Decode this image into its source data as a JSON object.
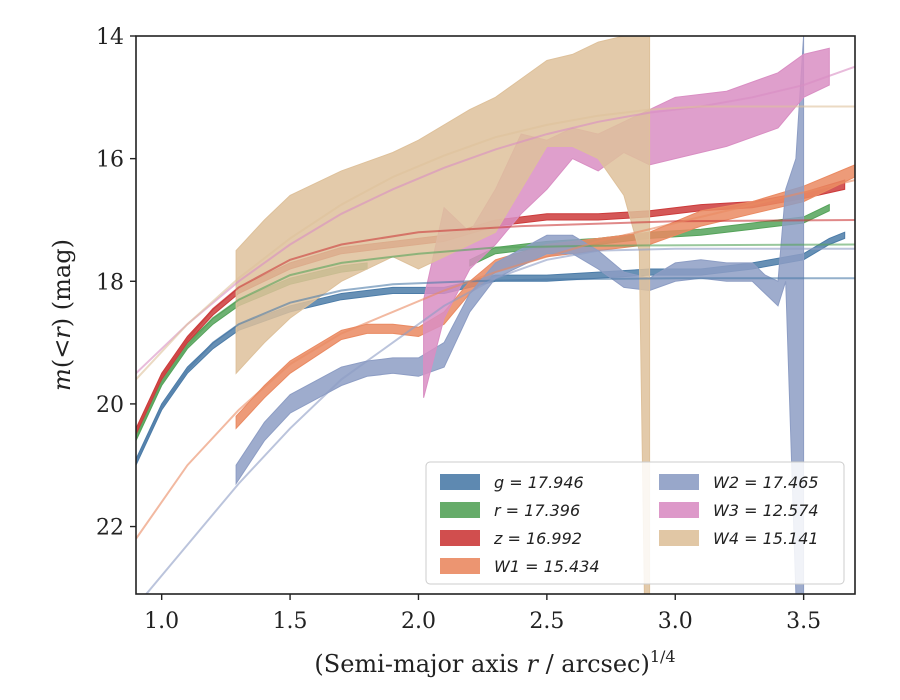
{
  "chart_data": {
    "type": "line",
    "xlabel_main": "(Semi-major axis ",
    "xlabel_var": "r",
    "xlabel_unit": " / arcsec)",
    "xlabel_sup": "1/4",
    "ylabel_main": "m",
    "ylabel_paren": "(<",
    "ylabel_var": "r",
    "ylabel_close": ") (mag)",
    "xlim": [
      0.9,
      3.7
    ],
    "ylim": [
      23.1,
      14.0
    ],
    "xticks": [
      1.0,
      1.5,
      2.0,
      2.5,
      3.0,
      3.5
    ],
    "xtick_labels": [
      "1.0",
      "1.5",
      "2.0",
      "2.5",
      "3.0",
      "3.5"
    ],
    "yticks": [
      14,
      16,
      18,
      20,
      22
    ],
    "ytick_labels": [
      "14",
      "16",
      "18",
      "20",
      "22"
    ],
    "legend_position": "bottom-right",
    "series": [
      {
        "name": "g",
        "legend": "g = 17.946",
        "color": "#4c7ca8",
        "band": [
          [
            0.9,
            20.9,
            21.0
          ],
          [
            1.0,
            20.0,
            20.1
          ],
          [
            1.1,
            19.4,
            19.5
          ],
          [
            1.2,
            19.0,
            19.1
          ],
          [
            1.3,
            18.7,
            18.8
          ],
          [
            1.5,
            18.4,
            18.5
          ],
          [
            1.7,
            18.2,
            18.3
          ],
          [
            1.9,
            18.1,
            18.2
          ],
          [
            2.1,
            18.1,
            18.2
          ],
          [
            2.2,
            18.0,
            18.1
          ],
          [
            2.3,
            17.9,
            18.0
          ],
          [
            2.5,
            17.9,
            18.0
          ],
          [
            2.7,
            17.85,
            17.95
          ],
          [
            2.9,
            17.8,
            17.9
          ],
          [
            3.1,
            17.8,
            17.9
          ],
          [
            3.3,
            17.7,
            17.8
          ],
          [
            3.5,
            17.55,
            17.65
          ],
          [
            3.6,
            17.3,
            17.4
          ],
          [
            3.66,
            17.2,
            17.3
          ]
        ],
        "model": [
          [
            0.9,
            20.95
          ],
          [
            1.0,
            20.05
          ],
          [
            1.1,
            19.45
          ],
          [
            1.2,
            19.0
          ],
          [
            1.3,
            18.7
          ],
          [
            1.5,
            18.35
          ],
          [
            1.7,
            18.15
          ],
          [
            1.9,
            18.05
          ],
          [
            2.2,
            18.0
          ],
          [
            2.5,
            17.97
          ],
          [
            3.0,
            17.95
          ],
          [
            3.7,
            17.95
          ]
        ]
      },
      {
        "name": "r",
        "legend": "r = 17.396",
        "color": "#55a35a",
        "band": [
          [
            0.9,
            20.5,
            20.6
          ],
          [
            1.0,
            19.6,
            19.7
          ],
          [
            1.1,
            19.0,
            19.1
          ],
          [
            1.2,
            18.6,
            18.7
          ],
          [
            1.3,
            18.3,
            18.4
          ],
          [
            1.5,
            17.95,
            18.05
          ],
          [
            1.7,
            17.75,
            17.85
          ],
          [
            1.8,
            17.7,
            17.8
          ]
        ],
        "model": [
          [
            0.9,
            20.55
          ],
          [
            1.0,
            19.65
          ],
          [
            1.1,
            19.05
          ],
          [
            1.2,
            18.6
          ],
          [
            1.3,
            18.3
          ],
          [
            1.5,
            17.9
          ],
          [
            1.7,
            17.7
          ],
          [
            2.0,
            17.55
          ],
          [
            2.3,
            17.45
          ],
          [
            2.7,
            17.42
          ],
          [
            3.7,
            17.4
          ]
        ],
        "band2": [
          [
            2.2,
            17.65,
            17.75
          ],
          [
            2.3,
            17.45,
            17.55
          ],
          [
            2.5,
            17.35,
            17.45
          ],
          [
            2.7,
            17.3,
            17.4
          ],
          [
            2.9,
            17.2,
            17.3
          ],
          [
            3.1,
            17.15,
            17.25
          ],
          [
            3.3,
            17.05,
            17.15
          ],
          [
            3.5,
            16.95,
            17.05
          ],
          [
            3.6,
            16.75,
            16.85
          ]
        ]
      },
      {
        "name": "z",
        "legend": "z = 16.992",
        "color": "#cc3b3b",
        "band": [
          [
            0.9,
            20.4,
            20.5
          ],
          [
            1.0,
            19.5,
            19.6
          ],
          [
            1.1,
            18.9,
            19.0
          ],
          [
            1.2,
            18.45,
            18.55
          ],
          [
            1.3,
            18.1,
            18.2
          ],
          [
            1.5,
            17.7,
            17.8
          ],
          [
            1.7,
            17.45,
            17.55
          ],
          [
            1.9,
            17.35,
            17.45
          ],
          [
            2.1,
            17.25,
            17.35
          ],
          [
            2.3,
            17.0,
            17.1
          ],
          [
            2.5,
            16.9,
            17.0
          ],
          [
            2.7,
            16.9,
            17.0
          ],
          [
            2.9,
            16.85,
            16.95
          ],
          [
            3.1,
            16.75,
            16.85
          ],
          [
            3.3,
            16.7,
            16.8
          ],
          [
            3.5,
            16.55,
            16.65
          ],
          [
            3.66,
            16.35,
            16.5
          ]
        ],
        "model": [
          [
            0.9,
            20.45
          ],
          [
            1.0,
            19.55
          ],
          [
            1.1,
            18.95
          ],
          [
            1.2,
            18.45
          ],
          [
            1.3,
            18.1
          ],
          [
            1.5,
            17.65
          ],
          [
            1.7,
            17.4
          ],
          [
            2.0,
            17.2
          ],
          [
            2.4,
            17.1
          ],
          [
            3.0,
            17.02
          ],
          [
            3.7,
            17.0
          ]
        ]
      },
      {
        "name": "W1",
        "legend": "W1 = 15.434",
        "color": "#ea8a62",
        "band": [
          [
            1.29,
            20.2,
            20.4
          ],
          [
            1.4,
            19.7,
            19.9
          ],
          [
            1.5,
            19.3,
            19.5
          ],
          [
            1.7,
            18.8,
            18.95
          ],
          [
            1.8,
            18.7,
            18.85
          ],
          [
            1.9,
            18.7,
            18.85
          ],
          [
            2.0,
            18.75,
            18.9
          ],
          [
            2.1,
            18.5,
            18.7
          ],
          [
            2.2,
            18.0,
            18.2
          ],
          [
            2.3,
            17.65,
            17.85
          ],
          [
            2.5,
            17.4,
            17.6
          ],
          [
            2.7,
            17.3,
            17.5
          ],
          [
            2.9,
            17.2,
            17.4
          ],
          [
            3.1,
            16.85,
            17.1
          ],
          [
            3.3,
            16.7,
            16.9
          ],
          [
            3.5,
            16.45,
            16.7
          ],
          [
            3.7,
            16.1,
            16.3
          ]
        ],
        "model": [
          [
            0.9,
            22.2
          ],
          [
            1.1,
            21.0
          ],
          [
            1.3,
            20.1
          ],
          [
            1.5,
            19.35
          ],
          [
            1.7,
            18.85
          ],
          [
            1.9,
            18.5
          ],
          [
            2.1,
            18.15
          ],
          [
            2.3,
            17.85
          ],
          [
            2.5,
            17.6
          ],
          [
            2.7,
            17.35
          ],
          [
            2.9,
            17.15
          ],
          [
            3.1,
            16.95
          ],
          [
            3.3,
            16.75
          ],
          [
            3.5,
            16.55
          ],
          [
            3.7,
            16.35
          ]
        ]
      },
      {
        "name": "W2",
        "legend": "W2 = 17.465",
        "color": "#8d9dc4",
        "band": [
          [
            1.29,
            21.0,
            21.3
          ],
          [
            1.4,
            20.3,
            20.6
          ],
          [
            1.5,
            19.85,
            20.15
          ],
          [
            1.7,
            19.4,
            19.7
          ],
          [
            1.8,
            19.3,
            19.55
          ],
          [
            1.9,
            19.25,
            19.5
          ],
          [
            2.0,
            19.25,
            19.55
          ],
          [
            2.1,
            19.0,
            19.4
          ],
          [
            2.2,
            18.2,
            18.5
          ],
          [
            2.3,
            17.7,
            17.95
          ],
          [
            2.5,
            17.25,
            17.55
          ],
          [
            2.6,
            17.25,
            17.55
          ],
          [
            2.7,
            17.5,
            17.8
          ],
          [
            2.8,
            17.85,
            18.1
          ],
          [
            2.9,
            17.95,
            18.15
          ],
          [
            3.0,
            17.7,
            18.0
          ],
          [
            3.1,
            17.65,
            17.95
          ],
          [
            3.2,
            17.7,
            18.0
          ],
          [
            3.3,
            17.7,
            18.0
          ],
          [
            3.35,
            17.9,
            18.2
          ],
          [
            3.4,
            18.0,
            18.4
          ],
          [
            3.43,
            16.5,
            18.0
          ],
          [
            3.47,
            16.0,
            23.1
          ],
          [
            3.5,
            14.0,
            23.1
          ]
        ],
        "model": [
          [
            0.9,
            23.3
          ],
          [
            1.1,
            22.3
          ],
          [
            1.3,
            21.3
          ],
          [
            1.5,
            20.4
          ],
          [
            1.7,
            19.6
          ],
          [
            1.9,
            19.0
          ],
          [
            2.1,
            18.4
          ],
          [
            2.3,
            17.95
          ],
          [
            2.5,
            17.65
          ],
          [
            2.7,
            17.5
          ],
          [
            3.0,
            17.47
          ],
          [
            3.7,
            17.47
          ]
        ]
      },
      {
        "name": "W3",
        "legend": "W3 = 12.574",
        "color": "#d98ec3",
        "band": [
          [
            2.02,
            18.3,
            19.9
          ],
          [
            2.1,
            16.8,
            18.6
          ],
          [
            2.2,
            17.2,
            17.8
          ],
          [
            2.3,
            16.5,
            17.4
          ],
          [
            2.4,
            15.6,
            16.9
          ],
          [
            2.5,
            15.7,
            16.5
          ],
          [
            2.6,
            15.5,
            16.0
          ],
          [
            2.7,
            15.6,
            16.2
          ],
          [
            2.8,
            15.4,
            15.9
          ],
          [
            2.9,
            15.2,
            16.1
          ],
          [
            3.0,
            15.0,
            16.0
          ],
          [
            3.2,
            14.9,
            15.8
          ],
          [
            3.4,
            14.6,
            15.5
          ],
          [
            3.5,
            14.3,
            15.0
          ],
          [
            3.6,
            14.2,
            14.8
          ]
        ],
        "model": [
          [
            0.9,
            19.5
          ],
          [
            1.1,
            18.7
          ],
          [
            1.3,
            18.0
          ],
          [
            1.5,
            17.4
          ],
          [
            1.7,
            16.9
          ],
          [
            1.9,
            16.5
          ],
          [
            2.1,
            16.15
          ],
          [
            2.3,
            15.85
          ],
          [
            2.5,
            15.6
          ],
          [
            2.7,
            15.4
          ],
          [
            2.9,
            15.25
          ],
          [
            3.1,
            15.15
          ],
          [
            3.3,
            15.0
          ],
          [
            3.5,
            14.8
          ],
          [
            3.7,
            14.5
          ]
        ]
      },
      {
        "name": "W4",
        "legend": "W4 = 15.141",
        "color": "#dec19b",
        "band": [
          [
            1.29,
            17.5,
            19.5
          ],
          [
            1.4,
            17.0,
            19.0
          ],
          [
            1.5,
            16.6,
            18.6
          ],
          [
            1.7,
            16.2,
            18.0
          ],
          [
            1.9,
            15.9,
            17.6
          ],
          [
            2.0,
            15.7,
            17.8
          ],
          [
            2.2,
            15.2,
            17.4
          ],
          [
            2.3,
            15.0,
            17.2
          ],
          [
            2.4,
            14.7,
            16.5
          ],
          [
            2.5,
            14.4,
            15.8
          ],
          [
            2.6,
            14.3,
            15.8
          ],
          [
            2.7,
            14.1,
            16.0
          ],
          [
            2.8,
            14.0,
            16.6
          ],
          [
            2.86,
            14.0,
            17.5
          ],
          [
            2.88,
            14.0,
            23.1
          ],
          [
            2.9,
            14.0,
            23.1
          ]
        ],
        "model": [
          [
            0.9,
            19.6
          ],
          [
            1.1,
            18.7
          ],
          [
            1.3,
            17.95
          ],
          [
            1.5,
            17.3
          ],
          [
            1.7,
            16.75
          ],
          [
            1.9,
            16.3
          ],
          [
            2.1,
            15.95
          ],
          [
            2.3,
            15.65
          ],
          [
            2.5,
            15.45
          ],
          [
            2.7,
            15.3
          ],
          [
            2.9,
            15.2
          ],
          [
            3.1,
            15.15
          ],
          [
            3.7,
            15.15
          ]
        ]
      }
    ]
  }
}
